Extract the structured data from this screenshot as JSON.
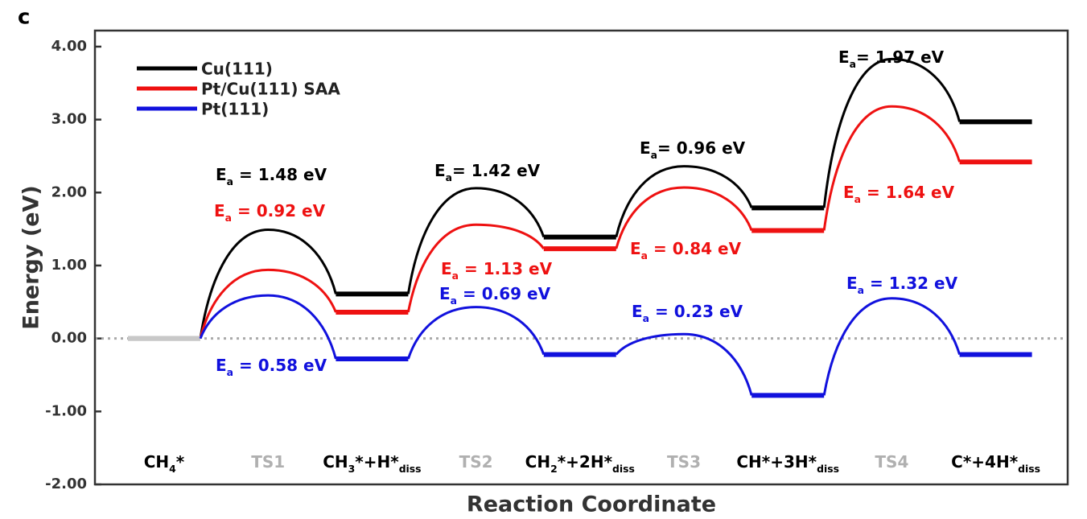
{
  "chart_data": {
    "type": "energy-profile",
    "panel_label": "c",
    "xlabel": "Reaction Coordinate",
    "ylabel": "Energy (eV)",
    "categories": [
      [
        "CH",
        "4",
        "*"
      ],
      [
        "TS1"
      ],
      [
        "CH",
        "3",
        "*+H*",
        "diss"
      ],
      [
        "TS2"
      ],
      [
        "CH",
        "2",
        "*+2H*",
        "diss"
      ],
      [
        "TS3"
      ],
      [
        "CH*+3H*",
        "diss"
      ],
      [
        "TS4"
      ],
      [
        "C*+4H*",
        "diss"
      ]
    ],
    "category_colors": [
      "#000000",
      "#b0b0b0",
      "#000000",
      "#b0b0b0",
      "#000000",
      "#b0b0b0",
      "#000000",
      "#b0b0b0",
      "#000000"
    ],
    "initial_color": "#c8c8c8",
    "series": [
      {
        "name": "Cu(111)",
        "color": "#000000",
        "values": [
          0,
          1.49,
          0.61,
          2.06,
          1.39,
          2.36,
          1.79,
          3.83,
          2.97
        ]
      },
      {
        "name": "Pt/Cu(111) SAA",
        "color": "#ee1111",
        "values": [
          0,
          0.94,
          0.36,
          1.56,
          1.23,
          2.07,
          1.48,
          3.18,
          2.42
        ]
      },
      {
        "name": "Pt(111)",
        "color": "#1111dd",
        "values": [
          0,
          0.59,
          -0.28,
          0.43,
          -0.22,
          0.06,
          -0.78,
          0.55,
          -0.22
        ]
      }
    ],
    "annotations": [
      {
        "parts": [
          "E",
          "a",
          " = 1.48 eV"
        ],
        "color": "#000000"
      },
      {
        "parts": [
          "E",
          "a",
          " = 0.92 eV"
        ],
        "color": "#ee1111"
      },
      {
        "parts": [
          "E",
          "a",
          " = 0.58 eV"
        ],
        "color": "#1111dd"
      },
      {
        "parts": [
          "E",
          "a",
          "= 1.42 eV"
        ],
        "color": "#000000"
      },
      {
        "parts": [
          "E",
          "a",
          " = 1.13 eV"
        ],
        "color": "#ee1111"
      },
      {
        "parts": [
          "E",
          "a",
          " = 0.69 eV"
        ],
        "color": "#1111dd"
      },
      {
        "parts": [
          "E",
          "a",
          "= 0.96 eV"
        ],
        "color": "#000000"
      },
      {
        "parts": [
          "E",
          "a",
          " = 0.84 eV"
        ],
        "color": "#ee1111"
      },
      {
        "parts": [
          "E",
          "a",
          " = 0.23 eV"
        ],
        "color": "#1111dd"
      },
      {
        "parts": [
          "E",
          "a",
          "= 1.97 eV"
        ],
        "color": "#000000"
      },
      {
        "parts": [
          "E",
          "a",
          " = 1.64 eV"
        ],
        "color": "#ee1111"
      },
      {
        "parts": [
          "E",
          "a",
          " = 1.32 eV"
        ],
        "color": "#1111dd"
      }
    ],
    "ylim": [
      -2.0,
      4.22
    ],
    "yticks": [
      {
        "value": -2,
        "label": "-2.00"
      },
      {
        "value": -1,
        "label": "-1.00"
      },
      {
        "value": 0,
        "label": "0.00"
      },
      {
        "value": 1,
        "label": "1.00"
      },
      {
        "value": 2,
        "label": "2.00"
      },
      {
        "value": 3,
        "label": "3.00"
      },
      {
        "value": 4,
        "label": "4.00"
      }
    ],
    "zero_line": true,
    "legend": "upper left"
  }
}
